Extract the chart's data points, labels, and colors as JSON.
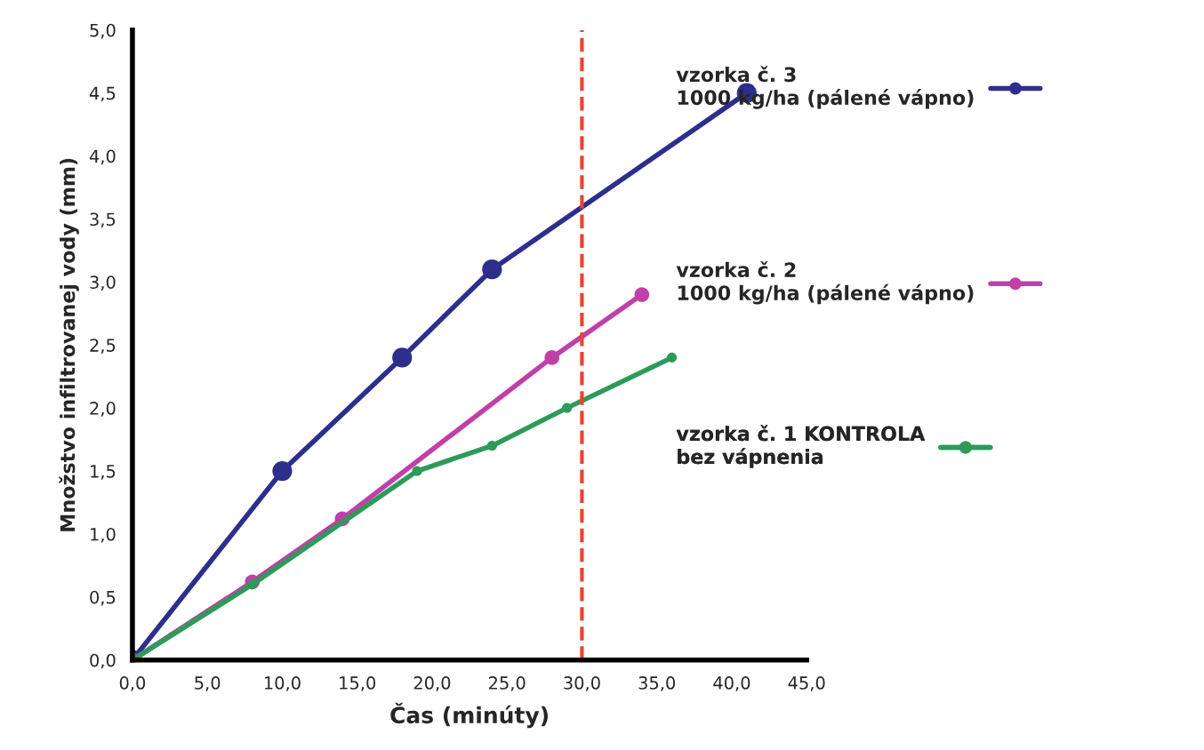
{
  "chart_data": {
    "type": "line",
    "xlabel": "Čas (minúty)",
    "ylabel": "Množstvo infiltrovanej vody (mm)",
    "xlim": [
      0,
      45
    ],
    "ylim": [
      0,
      5
    ],
    "xticks": [
      {
        "value": 0,
        "label": "0,0"
      },
      {
        "value": 5,
        "label": "5,0"
      },
      {
        "value": 10,
        "label": "10,0"
      },
      {
        "value": 15,
        "label": "15,0"
      },
      {
        "value": 20,
        "label": "20,0"
      },
      {
        "value": 25,
        "label": "25,0"
      },
      {
        "value": 30,
        "label": "30,0"
      },
      {
        "value": 35,
        "label": "35,0"
      },
      {
        "value": 40,
        "label": "40,0"
      },
      {
        "value": 45,
        "label": "45,0"
      }
    ],
    "yticks": [
      {
        "value": 0,
        "label": "0,0"
      },
      {
        "value": 0.5,
        "label": "0,5"
      },
      {
        "value": 1,
        "label": "1,0"
      },
      {
        "value": 1.5,
        "label": "1,5"
      },
      {
        "value": 2,
        "label": "2,0"
      },
      {
        "value": 2.5,
        "label": "2,5"
      },
      {
        "value": 3,
        "label": "3,0"
      },
      {
        "value": 3.5,
        "label": "3,5"
      },
      {
        "value": 4,
        "label": "4,0"
      },
      {
        "value": 4.5,
        "label": "4,5"
      },
      {
        "value": 5,
        "label": "5,0"
      }
    ],
    "series": [
      {
        "name": "vzorka č. 3\n1000 kg/ha (pálené vápno)",
        "color": "#2e2e8c",
        "x": [
          0,
          10,
          18,
          24,
          41
        ],
        "values": [
          0,
          1.5,
          2.4,
          3.1,
          4.5
        ]
      },
      {
        "name": "vzorka č. 2\n1000 kg/ha (pálené vápno)",
        "color": "#c040a8",
        "x": [
          0,
          8,
          14,
          28,
          34
        ],
        "values": [
          0,
          0.62,
          1.12,
          2.4,
          2.9
        ]
      },
      {
        "name": "vzorka č. 1 KONTROLA\nbez vápnenia",
        "color": "#2e9a5a",
        "x": [
          0,
          8,
          19,
          24,
          29,
          36
        ],
        "values": [
          0,
          0.6,
          1.5,
          1.7,
          2.0,
          2.4
        ]
      }
    ],
    "ref_lines": [
      {
        "axis": "x",
        "value": 30,
        "color": "#e8452c",
        "line_style": "dashed"
      }
    ],
    "marker": "circle",
    "line_style": "solid",
    "grid": false,
    "legend": "right"
  }
}
